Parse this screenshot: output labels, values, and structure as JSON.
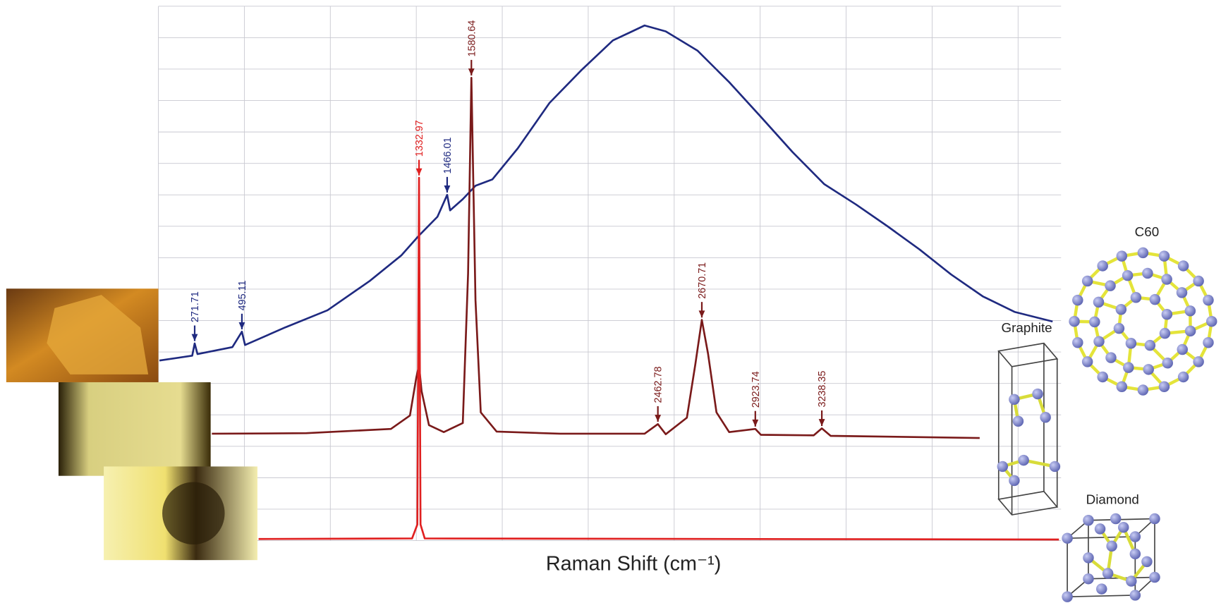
{
  "chart_data": {
    "type": "line",
    "x_label": "Raman Shift (cm⁻¹)",
    "xlim": [
      100,
      4370
    ],
    "ylim": [
      0,
      100
    ],
    "structure_labels": [
      "C60",
      "Graphite",
      "Diamond"
    ],
    "series": [
      {
        "color": "#1f2a80",
        "x": [
          105,
          260,
          271.71,
          285,
          450,
          495.11,
          510,
          700,
          900,
          1100,
          1250,
          1332.97,
          1420,
          1466.01,
          1480,
          1540,
          1600,
          1680,
          1800,
          1950,
          2100,
          2250,
          2400,
          2500,
          2650,
          2800,
          2950,
          3100,
          3250,
          3400,
          3550,
          3700,
          3850,
          4000,
          4150,
          4330
        ],
        "values": [
          33.7,
          34.6,
          36.9,
          34.9,
          36.2,
          39.1,
          36.6,
          39.9,
          43.1,
          48.6,
          53.4,
          57.1,
          60.6,
          64.7,
          61.8,
          63.9,
          66.4,
          67.6,
          73.4,
          81.9,
          88.0,
          93.6,
          96.4,
          95.3,
          91.7,
          85.8,
          79.3,
          72.7,
          66.7,
          62.9,
          58.8,
          54.5,
          49.8,
          45.7,
          42.8,
          41.0
        ],
        "peaks": [
          271.71,
          495.11,
          1466.01
        ]
      },
      {
        "color": "#7a1a1a",
        "x": [
          353,
          800,
          1200,
          1290,
          1320,
          1332.97,
          1345,
          1380,
          1450,
          1540,
          1565,
          1580.64,
          1600,
          1625,
          1700,
          2000,
          2400,
          2462.78,
          2500,
          2600,
          2640,
          2670.71,
          2700,
          2740,
          2800,
          2923.74,
          2950,
          3200,
          3238.35,
          3280,
          3985
        ],
        "values": [
          20.0,
          20.1,
          20.9,
          23.4,
          30.5,
          32.8,
          28.0,
          21.6,
          20.3,
          22.0,
          50.0,
          86.6,
          45.0,
          24.0,
          20.4,
          20.0,
          20.0,
          21.8,
          19.9,
          23.0,
          33.0,
          41.3,
          35.0,
          24.0,
          20.3,
          20.9,
          19.8,
          19.7,
          21.0,
          19.6,
          19.2
        ],
        "peaks": [
          1580.64,
          2462.78,
          2670.71,
          2923.74,
          3238.35
        ]
      },
      {
        "color": "#e02020",
        "x": [
          574,
          1300,
          1325,
          1332.97,
          1340,
          1360,
          4360
        ],
        "values": [
          0.3,
          0.4,
          3.0,
          67.9,
          3.0,
          0.4,
          0.2
        ],
        "peaks": [
          1332.97
        ]
      }
    ]
  }
}
